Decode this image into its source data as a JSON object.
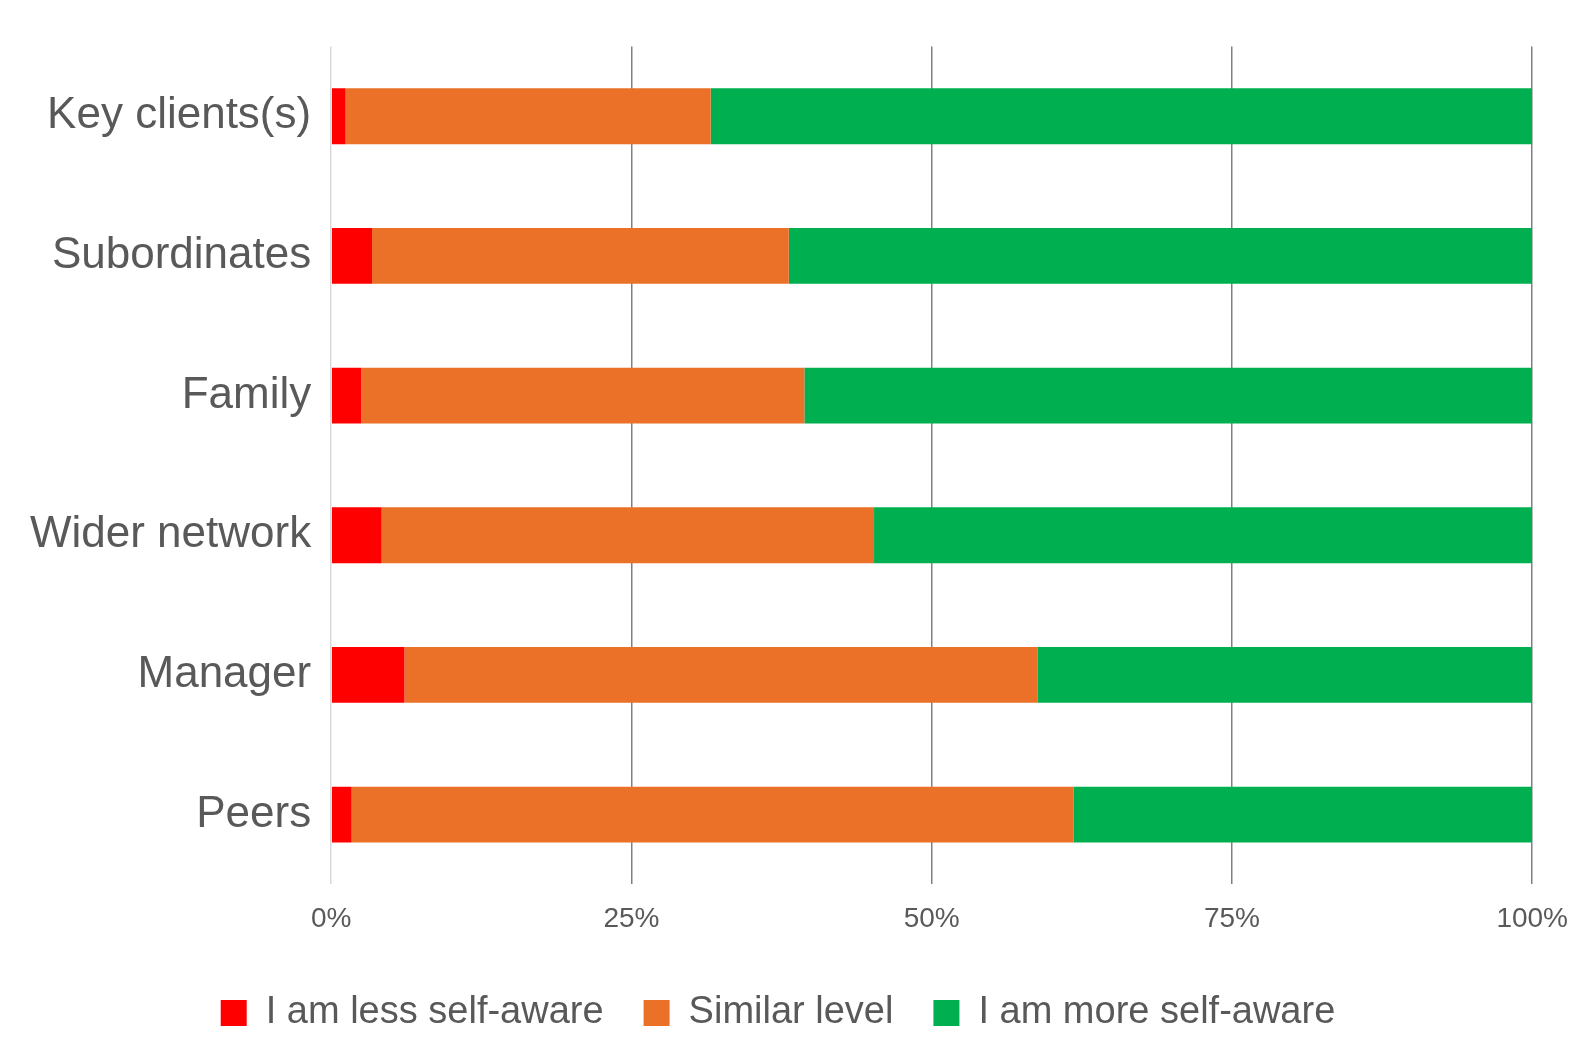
{
  "chart_data": {
    "type": "bar",
    "orientation": "horizontal",
    "stacked": true,
    "categories": [
      "Key clients(s)",
      "Subordinates",
      "Family",
      "Wider network",
      "Manager",
      "Peers"
    ],
    "series": [
      {
        "name": "I am less self-aware",
        "color": "#ff0000",
        "values": [
          1.2,
          3.4,
          2.5,
          4.2,
          6.1,
          1.7
        ]
      },
      {
        "name": "Similar level",
        "color": "#eb7028",
        "values": [
          30.4,
          34.7,
          36.9,
          41.0,
          52.7,
          60.1
        ]
      },
      {
        "name": "I am more self-aware",
        "color": "#00b050",
        "values": [
          68.4,
          61.9,
          60.6,
          54.8,
          41.2,
          38.2
        ]
      }
    ],
    "xlim": [
      0,
      100
    ],
    "xticks": [
      {
        "value": 0,
        "label": "0%"
      },
      {
        "value": 25,
        "label": "25%"
      },
      {
        "value": 50,
        "label": "50%"
      },
      {
        "value": 75,
        "label": "75%"
      },
      {
        "value": 100,
        "label": "100%"
      }
    ],
    "grid": "x",
    "legend": "bottom"
  }
}
